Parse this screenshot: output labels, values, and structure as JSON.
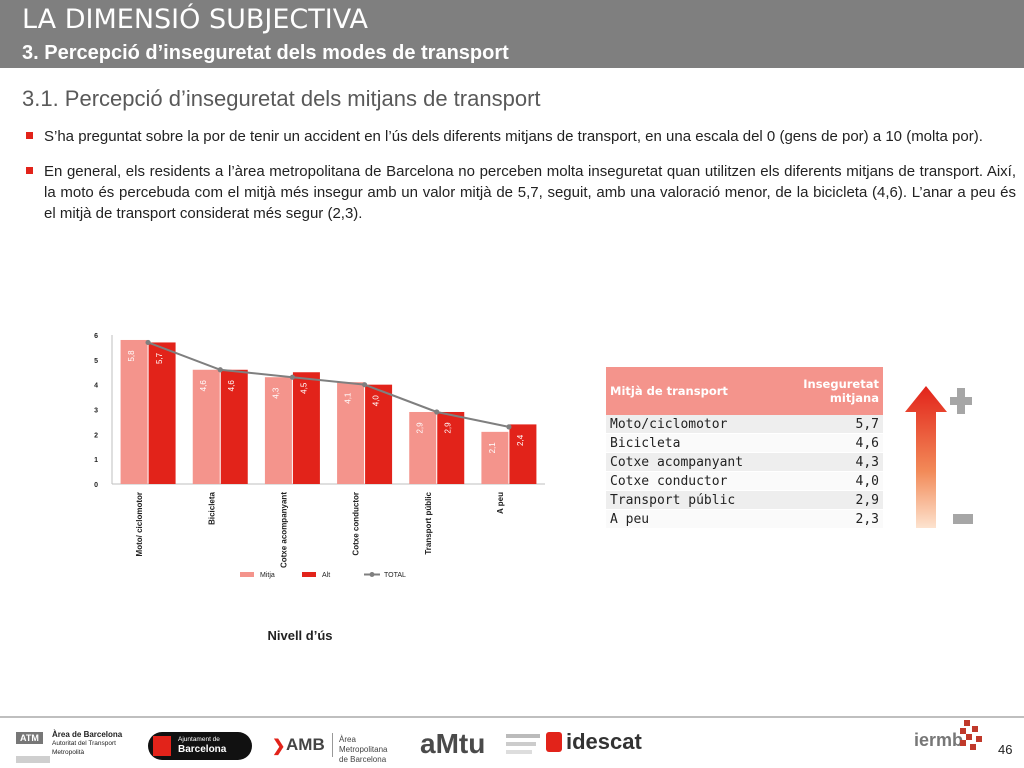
{
  "header": {
    "title": "LA DIMENSIÓ SUBJECTIVA",
    "subtitle": "3. Percepció d’inseguretat dels modes de transport"
  },
  "section_title": "3.1. Percepció d’inseguretat dels mitjans de transport",
  "bullets": [
    "S’ha preguntat sobre la por de tenir un accident en l’ús dels diferents mitjans de transport, en una escala del 0 (gens de por) a 10 (molta por).",
    "En general, els residents a l’àrea metropolitana de Barcelona no perceben molta inseguretat quan utilitzen els diferents mitjans de transport. Així, la moto és percebuda com el mitjà més insegur amb un valor mitjà de 5,7, seguit, amb una valoració menor, de la bicicleta (4,6). L’anar a peu és el mitjà de transport considerat més segur (2,3)."
  ],
  "chart_data": {
    "type": "bar",
    "categories": [
      "Moto/ ciclomotor",
      "Bicicleta",
      "Cotxe acompanyant",
      "Cotxe conductor",
      "Transport públic",
      "A peu"
    ],
    "series": [
      {
        "name": "Mitja",
        "type": "bar",
        "color": "#f4948c",
        "values": [
          5.8,
          4.6,
          4.3,
          4.1,
          2.9,
          2.1
        ],
        "labels": [
          "5,8",
          "4,6",
          "4,3",
          "4,1",
          "2,9",
          "2,1"
        ]
      },
      {
        "name": "Alt",
        "type": "bar",
        "color": "#e2231a",
        "values": [
          5.7,
          4.6,
          4.5,
          4.0,
          2.9,
          2.4
        ],
        "labels": [
          "5,7",
          "4,6",
          "4,5",
          "4,0",
          "2,9",
          "2,4"
        ]
      },
      {
        "name": "TOTAL",
        "type": "line",
        "color": "#7f7f7f",
        "values": [
          5.7,
          4.6,
          4.3,
          4.0,
          2.9,
          2.3
        ]
      }
    ],
    "yticks": [
      "0",
      "1",
      "2",
      "3",
      "4",
      "5",
      "6"
    ],
    "ylim": [
      0,
      6
    ],
    "xlabel": "Nivell d’ús",
    "legend_position": "bottom",
    "grid": false
  },
  "table": {
    "headers": [
      "Mitjà de transport",
      "Inseguretat mitjana"
    ],
    "rows": [
      {
        "mode": "Moto/ciclomotor",
        "value": "5,7"
      },
      {
        "mode": "Bicicleta",
        "value": "4,6"
      },
      {
        "mode": "Cotxe acompanyant",
        "value": "4,3"
      },
      {
        "mode": "Cotxe conductor",
        "value": "4,0"
      },
      {
        "mode": "Transport públic",
        "value": "2,9"
      },
      {
        "mode": "A peu",
        "value": "2,3"
      }
    ]
  },
  "footer": {
    "atm_line1": "Àrea de Barcelona",
    "atm_line2": "Autoritat del Transport",
    "atm_line3": "Metropolità",
    "atm_badge": "ATM",
    "ajuntament_line1": "Ajuntament de",
    "ajuntament_line2": "Barcelona",
    "amb_name": "AMB",
    "amb_line1": "Àrea Metropolitana",
    "amb_line2": "de Barcelona",
    "amtu": "aMtu",
    "idescat": "idescat",
    "iermb": "iermb",
    "page_number": "46"
  },
  "colors": {
    "header_bg": "#7f7f7f",
    "accent_red": "#e2231a",
    "light_red": "#f4948c",
    "line_gray": "#7f7f7f"
  }
}
